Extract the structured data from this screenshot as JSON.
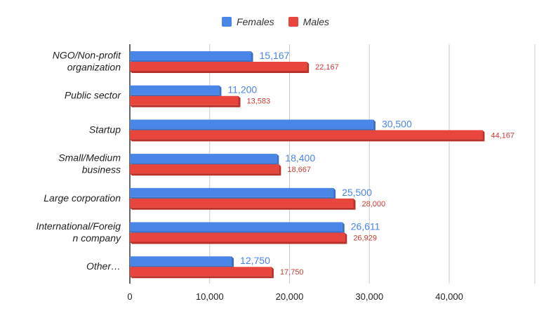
{
  "chart_data": {
    "type": "bar",
    "orientation": "horizontal",
    "categories": [
      [
        "NGO/Non-profit",
        "organization"
      ],
      [
        "Public sector"
      ],
      [
        "Startup"
      ],
      [
        "Small/Medium",
        "business"
      ],
      [
        "Large corporation"
      ],
      [
        "International/Foreig",
        "n company"
      ],
      [
        "Other…"
      ]
    ],
    "series": [
      {
        "name": "Females",
        "color": "#4a86e8",
        "side_color": "#3b6fc4",
        "values": [
          15167,
          11200,
          30500,
          18400,
          25500,
          26611,
          12750
        ],
        "labels": [
          "15,167",
          "11,200",
          "30,500",
          "18,400",
          "25,500",
          "26,611",
          "12,750"
        ]
      },
      {
        "name": "Males",
        "color": "#e8453c",
        "side_color": "#b8322b",
        "values": [
          22167,
          13583,
          44167,
          18667,
          28000,
          26929,
          17750
        ],
        "labels": [
          "22,167",
          "13,583",
          "44,167",
          "18,667",
          "28,000",
          "26,929",
          "17,750"
        ]
      }
    ],
    "xlim": [
      0,
      50000
    ],
    "xticks": [
      0,
      10000,
      20000,
      30000,
      40000
    ],
    "xtick_labels": [
      "0",
      "10,000",
      "20,000",
      "30,000",
      "40,000"
    ],
    "grid": true,
    "legend_position": "top-center",
    "title": "",
    "xlabel": "",
    "ylabel": ""
  }
}
